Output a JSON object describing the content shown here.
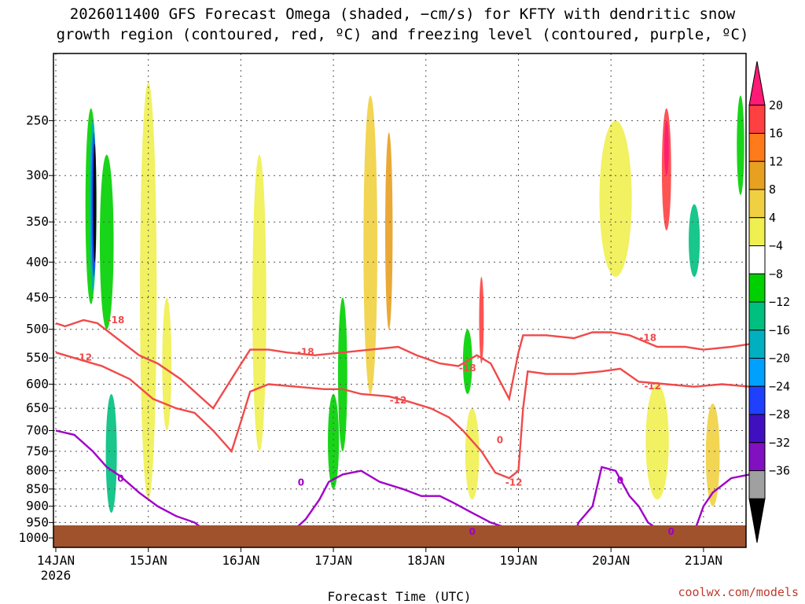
{
  "chart_data": {
    "type": "heatmap",
    "title_line1": "2026011400 GFS Forecast Omega (shaded, −cm/s) for KFTY with dendritic snow",
    "title_line2": "growth region (contoured, red, ºC) and freezing level (contoured, purple, ºC)",
    "xlabel": "Forecast Time (UTC)",
    "x_ticks": [
      "14JAN",
      "15JAN",
      "16JAN",
      "17JAN",
      "18JAN",
      "19JAN",
      "20JAN",
      "21JAN"
    ],
    "x_year_label": "2026",
    "x_range_days": [
      0,
      7.5
    ],
    "y_ticks": [
      "250",
      "300",
      "350",
      "400",
      "450",
      "500",
      "550",
      "600",
      "650",
      "700",
      "750",
      "800",
      "850",
      "900",
      "950",
      "1000"
    ],
    "y_range_hpa": [
      200,
      1000
    ],
    "y_scale": "log-pressure",
    "grid": "dotted",
    "colorbar": {
      "labels": [
        "20",
        "16",
        "12",
        "8",
        "4",
        "−4",
        "−8",
        "−12",
        "−16",
        "−20",
        "−24",
        "−28",
        "−32",
        "−36"
      ],
      "colors": [
        "#ff1a75",
        "#ff4040",
        "#ff7a1a",
        "#e8a020",
        "#f0d040",
        "#f0ef50",
        "#ffffff",
        "#00d000",
        "#00c080",
        "#00b0c0",
        "#00a0ff",
        "#2040ff",
        "#4010c0",
        "#8010c0",
        "#a0a0a0",
        "#000000"
      ]
    },
    "contour_labels": {
      "red": [
        "-18",
        "-12",
        "-18",
        "-12",
        "-18",
        "0",
        "-12",
        "-18",
        "-12"
      ],
      "purple": [
        "0",
        "0",
        "0",
        "0",
        "0"
      ]
    },
    "red_contours": [
      {
        "name": "-18",
        "points": [
          [
            0,
            490
          ],
          [
            0.1,
            495
          ],
          [
            0.3,
            485
          ],
          [
            0.45,
            490
          ],
          [
            0.7,
            520
          ],
          [
            0.9,
            545
          ],
          [
            1.1,
            560
          ],
          [
            1.35,
            590
          ],
          [
            1.7,
            650
          ],
          [
            1.95,
            575
          ],
          [
            2.1,
            535
          ],
          [
            2.3,
            535
          ],
          [
            2.5,
            540
          ],
          [
            2.8,
            545
          ],
          [
            3.1,
            540
          ],
          [
            3.4,
            535
          ],
          [
            3.7,
            530
          ],
          [
            3.9,
            545
          ],
          [
            4.15,
            560
          ],
          [
            4.35,
            565
          ],
          [
            4.45,
            555
          ],
          [
            4.55,
            545
          ],
          [
            4.7,
            560
          ],
          [
            4.9,
            630
          ],
          [
            5.0,
            540
          ],
          [
            5.05,
            510
          ],
          [
            5.3,
            510
          ],
          [
            5.6,
            515
          ],
          [
            5.8,
            505
          ],
          [
            6.0,
            505
          ],
          [
            6.2,
            510
          ],
          [
            6.5,
            530
          ],
          [
            6.8,
            530
          ],
          [
            7.0,
            535
          ],
          [
            7.3,
            530
          ],
          [
            7.5,
            525
          ]
        ]
      },
      {
        "name": "-12",
        "points": [
          [
            0,
            540
          ],
          [
            0.2,
            550
          ],
          [
            0.5,
            565
          ],
          [
            0.8,
            590
          ],
          [
            1.05,
            630
          ],
          [
            1.3,
            650
          ],
          [
            1.5,
            660
          ],
          [
            1.7,
            700
          ],
          [
            1.9,
            750
          ],
          [
            2.0,
            680
          ],
          [
            2.1,
            615
          ],
          [
            2.3,
            600
          ],
          [
            2.6,
            605
          ],
          [
            2.9,
            610
          ],
          [
            3.1,
            610
          ],
          [
            3.3,
            620
          ],
          [
            3.6,
            625
          ],
          [
            3.8,
            635
          ],
          [
            4.05,
            650
          ],
          [
            4.25,
            670
          ],
          [
            4.4,
            700
          ],
          [
            4.6,
            750
          ],
          [
            4.75,
            805
          ],
          [
            4.9,
            820
          ],
          [
            5.0,
            800
          ],
          [
            5.05,
            650
          ],
          [
            5.1,
            575
          ],
          [
            5.3,
            580
          ],
          [
            5.6,
            580
          ],
          [
            5.9,
            575
          ],
          [
            6.1,
            570
          ],
          [
            6.3,
            595
          ],
          [
            6.6,
            600
          ],
          [
            6.9,
            605
          ],
          [
            7.2,
            600
          ],
          [
            7.5,
            605
          ]
        ]
      }
    ],
    "purple_contours": [
      {
        "name": "0",
        "points": [
          [
            0,
            700
          ],
          [
            0.2,
            710
          ],
          [
            0.4,
            750
          ],
          [
            0.55,
            790
          ],
          [
            0.7,
            815
          ],
          [
            0.9,
            860
          ],
          [
            1.1,
            900
          ],
          [
            1.3,
            930
          ],
          [
            1.5,
            950
          ],
          [
            1.65,
            985
          ]
        ]
      },
      {
        "name": "0",
        "points": [
          [
            2.3,
            990
          ],
          [
            2.55,
            980
          ],
          [
            2.7,
            940
          ],
          [
            2.85,
            880
          ],
          [
            2.95,
            830
          ],
          [
            3.1,
            810
          ],
          [
            3.3,
            800
          ],
          [
            3.5,
            830
          ],
          [
            3.75,
            850
          ],
          [
            3.95,
            870
          ],
          [
            4.15,
            870
          ],
          [
            4.3,
            890
          ],
          [
            4.5,
            920
          ],
          [
            4.7,
            950
          ],
          [
            4.9,
            970
          ],
          [
            5.05,
            990
          ]
        ]
      },
      {
        "name": "0",
        "points": [
          [
            5.6,
            990
          ],
          [
            5.65,
            950
          ],
          [
            5.8,
            900
          ],
          [
            5.9,
            790
          ],
          [
            6.05,
            800
          ],
          [
            6.2,
            870
          ],
          [
            6.3,
            900
          ],
          [
            6.4,
            950
          ],
          [
            6.6,
            990
          ]
        ]
      },
      {
        "name": "0",
        "points": [
          [
            6.9,
            980
          ],
          [
            7.0,
            900
          ],
          [
            7.1,
            860
          ],
          [
            7.3,
            820
          ],
          [
            7.5,
            810
          ]
        ]
      }
    ],
    "omega_blobs": [
      {
        "x": 0.38,
        "p0": 240,
        "p1": 460,
        "w": 0.12,
        "color": "#00d000"
      },
      {
        "x": 0.4,
        "p0": 250,
        "p1": 440,
        "w": 0.07,
        "color": "#00b0c0"
      },
      {
        "x": 0.41,
        "p0": 260,
        "p1": 420,
        "w": 0.05,
        "color": "#2040ff"
      },
      {
        "x": 0.42,
        "p0": 270,
        "p1": 400,
        "w": 0.035,
        "color": "#000000"
      },
      {
        "x": 0.55,
        "p0": 280,
        "p1": 500,
        "w": 0.15,
        "color": "#00d000"
      },
      {
        "x": 0.6,
        "p0": 620,
        "p1": 920,
        "w": 0.12,
        "color": "#00c080"
      },
      {
        "x": 1.0,
        "p0": 220,
        "p1": 880,
        "w": 0.18,
        "color": "#f0ef50"
      },
      {
        "x": 1.2,
        "p0": 450,
        "p1": 700,
        "w": 0.1,
        "color": "#f0ef50"
      },
      {
        "x": 2.2,
        "p0": 280,
        "p1": 750,
        "w": 0.15,
        "color": "#f0ef50"
      },
      {
        "x": 3.0,
        "p0": 620,
        "p1": 850,
        "w": 0.12,
        "color": "#00d000"
      },
      {
        "x": 3.1,
        "p0": 450,
        "p1": 750,
        "w": 0.1,
        "color": "#00d000"
      },
      {
        "x": 3.4,
        "p0": 230,
        "p1": 620,
        "w": 0.15,
        "color": "#f0d040"
      },
      {
        "x": 3.6,
        "p0": 260,
        "p1": 500,
        "w": 0.08,
        "color": "#e8a020"
      },
      {
        "x": 4.45,
        "p0": 500,
        "p1": 620,
        "w": 0.1,
        "color": "#00d000"
      },
      {
        "x": 4.6,
        "p0": 420,
        "p1": 560,
        "w": 0.05,
        "color": "#ff4040"
      },
      {
        "x": 4.5,
        "p0": 650,
        "p1": 880,
        "w": 0.15,
        "color": "#f0ef50"
      },
      {
        "x": 6.05,
        "p0": 250,
        "p1": 420,
        "w": 0.35,
        "color": "#f0ef50"
      },
      {
        "x": 6.6,
        "p0": 240,
        "p1": 360,
        "w": 0.1,
        "color": "#ff4040"
      },
      {
        "x": 6.6,
        "p0": 250,
        "p1": 300,
        "w": 0.05,
        "color": "#ff1a75"
      },
      {
        "x": 6.9,
        "p0": 330,
        "p1": 420,
        "w": 0.12,
        "color": "#00c080"
      },
      {
        "x": 6.5,
        "p0": 600,
        "p1": 880,
        "w": 0.25,
        "color": "#f0ef50"
      },
      {
        "x": 7.1,
        "p0": 640,
        "p1": 900,
        "w": 0.15,
        "color": "#f0d040"
      },
      {
        "x": 7.4,
        "p0": 230,
        "p1": 320,
        "w": 0.08,
        "color": "#00d000"
      }
    ]
  },
  "credit": "coolwx.com/models"
}
